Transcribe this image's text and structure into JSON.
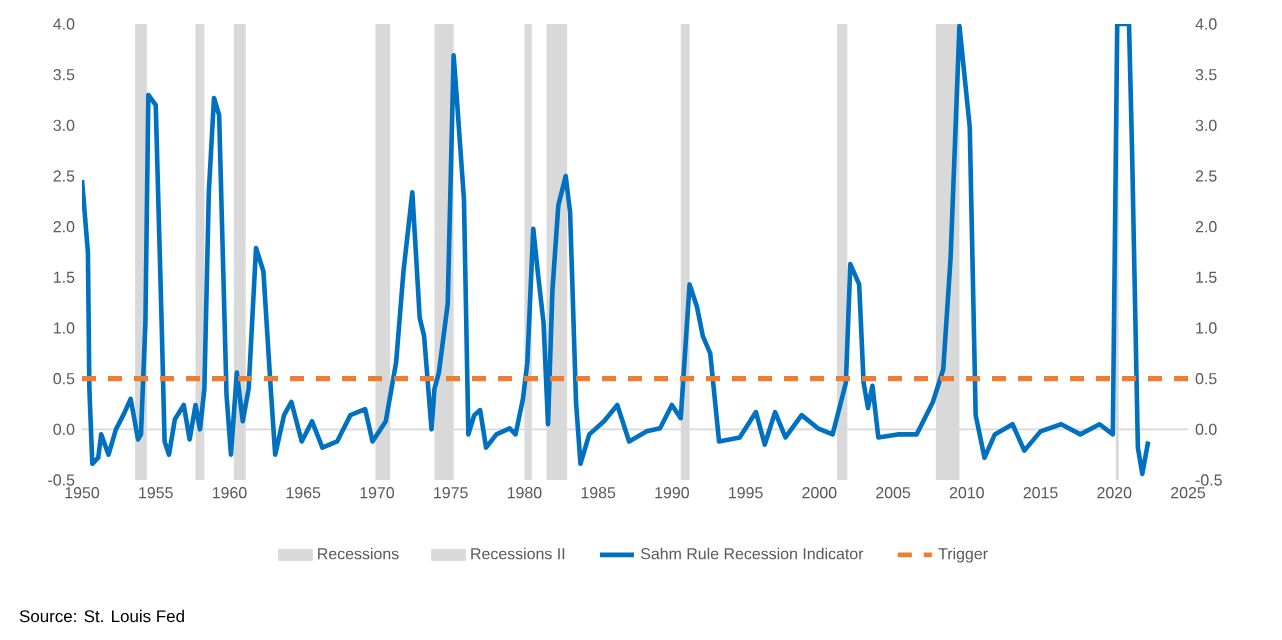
{
  "chart_data": {
    "type": "line",
    "xlim": [
      1950,
      2025
    ],
    "xticks": [
      1950,
      1955,
      1960,
      1965,
      1970,
      1975,
      1980,
      1985,
      1990,
      1995,
      2000,
      2005,
      2010,
      2015,
      2020,
      2025
    ],
    "ylim": [
      -0.5,
      4
    ],
    "yticks": [
      {
        "value": -0.5,
        "label": "-0.5"
      },
      {
        "value": 0,
        "label": "0.0"
      },
      {
        "value": 0.5,
        "label": "0.5"
      },
      {
        "value": 1,
        "label": "1.0"
      },
      {
        "value": 1.5,
        "label": "1.5"
      },
      {
        "value": 2,
        "label": "2.0"
      },
      {
        "value": 2.5,
        "label": "2.5"
      },
      {
        "value": 3,
        "label": "3.0"
      },
      {
        "value": 3.5,
        "label": "3.5"
      },
      {
        "value": 4,
        "label": "4.0"
      }
    ],
    "y2lim": [
      -0.5,
      4
    ],
    "y2ticks": [
      {
        "value": -0.5,
        "label": "-0.5"
      },
      {
        "value": 0,
        "label": "0.0"
      },
      {
        "value": 0.5,
        "label": "0.5"
      },
      {
        "value": 1,
        "label": "1.0"
      },
      {
        "value": 1.5,
        "label": "1.5"
      },
      {
        "value": 2,
        "label": "2.0"
      },
      {
        "value": 2.5,
        "label": "2.5"
      },
      {
        "value": 3,
        "label": "3.0"
      },
      {
        "value": 3.5,
        "label": "3.5"
      },
      {
        "value": 4,
        "label": "4.0"
      }
    ],
    "series": [
      {
        "name": "Sahm Rule Recession Indicator",
        "color": "#0070c0",
        "x": [
          1950.0,
          1950.4,
          1950.5,
          1950.7,
          1951.1,
          1951.3,
          1951.8,
          1952.3,
          1952.8,
          1953.3,
          1953.8,
          1954.0,
          1954.3,
          1954.5,
          1955.0,
          1955.4,
          1955.6,
          1955.9,
          1956.3,
          1956.9,
          1957.3,
          1957.7,
          1958.0,
          1958.3,
          1958.6,
          1958.95,
          1959.3,
          1959.8,
          1960.1,
          1960.5,
          1960.9,
          1961.3,
          1961.8,
          1962.3,
          1962.8,
          1963.1,
          1963.7,
          1964.2,
          1964.9,
          1965.6,
          1966.3,
          1967.3,
          1968.2,
          1969.2,
          1969.7,
          1970.6,
          1971.3,
          1971.8,
          1972.4,
          1972.9,
          1973.2,
          1973.7,
          1973.9,
          1974.2,
          1974.8,
          1975.2,
          1975.4,
          1975.9,
          1976.2,
          1976.6,
          1977.0,
          1977.4,
          1978.1,
          1979.0,
          1979.4,
          1979.9,
          1980.2,
          1980.6,
          1980.9,
          1981.3,
          1981.6,
          1981.9,
          1982.3,
          1982.8,
          1983.1,
          1983.5,
          1983.8,
          1984.4,
          1985.4,
          1986.3,
          1987.1,
          1988.3,
          1989.2,
          1990.0,
          1990.6,
          1991.2,
          1991.7,
          1992.1,
          1992.6,
          1993.2,
          1994.6,
          1995.7,
          1996.3,
          1997.0,
          1997.7,
          1998.8,
          1999.9,
          2000.9,
          2001.8,
          2002.1,
          2002.7,
          2003.0,
          2003.3,
          2003.6,
          2004.0,
          2005.3,
          2006.6,
          2007.7,
          2008.4,
          2008.9,
          2009.5,
          2010.2,
          2010.6,
          2011.2,
          2011.9,
          2013.1,
          2013.9,
          2015.0,
          2016.4,
          2017.7,
          2019.0,
          2019.9,
          2020.2,
          2021.0,
          2021.2,
          2021.6,
          2021.9,
          2022.3
        ],
        "values": [
          2.46,
          1.75,
          0.4,
          -0.34,
          -0.28,
          -0.05,
          -0.25,
          0.0,
          0.14,
          0.3,
          -0.1,
          -0.05,
          1.05,
          3.3,
          3.2,
          1.05,
          -0.12,
          -0.25,
          0.1,
          0.24,
          -0.1,
          0.24,
          0.0,
          0.4,
          2.34,
          3.27,
          3.1,
          0.34,
          -0.25,
          0.56,
          0.08,
          0.4,
          1.79,
          1.56,
          0.4,
          -0.25,
          0.14,
          0.27,
          -0.12,
          0.08,
          -0.18,
          -0.12,
          0.14,
          0.2,
          -0.12,
          0.08,
          0.66,
          1.56,
          2.34,
          1.1,
          0.92,
          0.0,
          0.4,
          0.56,
          1.24,
          3.69,
          3.3,
          2.27,
          -0.05,
          0.14,
          0.19,
          -0.18,
          -0.05,
          0.01,
          -0.05,
          0.3,
          0.66,
          1.98,
          1.56,
          1.05,
          0.05,
          1.37,
          2.21,
          2.5,
          2.14,
          0.27,
          -0.34,
          -0.05,
          0.08,
          0.24,
          -0.12,
          -0.02,
          0.01,
          0.24,
          0.11,
          1.43,
          1.21,
          0.92,
          0.75,
          -0.12,
          -0.08,
          0.17,
          -0.15,
          0.17,
          -0.08,
          0.14,
          0.01,
          -0.05,
          0.46,
          1.63,
          1.43,
          0.46,
          0.21,
          0.43,
          -0.08,
          -0.05,
          -0.05,
          0.27,
          0.59,
          1.69,
          3.98,
          2.98,
          0.14,
          -0.28,
          -0.05,
          0.05,
          -0.21,
          -0.02,
          0.05,
          -0.05,
          0.05,
          -0.05,
          4.0,
          4.0,
          2.79,
          -0.18,
          -0.44,
          -0.12
        ]
      }
    ],
    "bands": [
      {
        "axis": "x",
        "from": 1953.6,
        "to": 1954.4,
        "label": "Recessions",
        "color": "#d9d9d9"
      },
      {
        "axis": "x",
        "from": 1957.7,
        "to": 1958.3,
        "color": "#d9d9d9"
      },
      {
        "axis": "x",
        "from": 1960.3,
        "to": 1961.1,
        "color": "#d9d9d9"
      },
      {
        "axis": "x",
        "from": 1969.9,
        "to": 1970.9,
        "color": "#d9d9d9"
      },
      {
        "axis": "x",
        "from": 1973.9,
        "to": 1975.2,
        "color": "#d9d9d9"
      },
      {
        "axis": "x",
        "from": 1980.0,
        "to": 1980.5,
        "color": "#d9d9d9"
      },
      {
        "axis": "x",
        "from": 1981.5,
        "to": 1982.9,
        "label": "Recessions II",
        "color": "#d9d9d9"
      },
      {
        "axis": "x",
        "from": 1990.6,
        "to": 1991.2,
        "color": "#d9d9d9"
      },
      {
        "axis": "x",
        "from": 2001.2,
        "to": 2001.9,
        "color": "#d9d9d9"
      },
      {
        "axis": "x",
        "from": 2007.9,
        "to": 2009.5,
        "color": "#d9d9d9"
      },
      {
        "axis": "x",
        "from": 2020.1,
        "to": 2020.3,
        "color": "#d9d9d9"
      }
    ],
    "ref_lines": [
      {
        "axis": "y",
        "value": 0.5,
        "label": "Trigger",
        "color": "#ed7d31",
        "line_style": "dashed"
      }
    ],
    "legend": "bottom",
    "marker": "none",
    "line_style": "solid",
    "annotations": [
      "Source: St. Louis Fed"
    ]
  }
}
